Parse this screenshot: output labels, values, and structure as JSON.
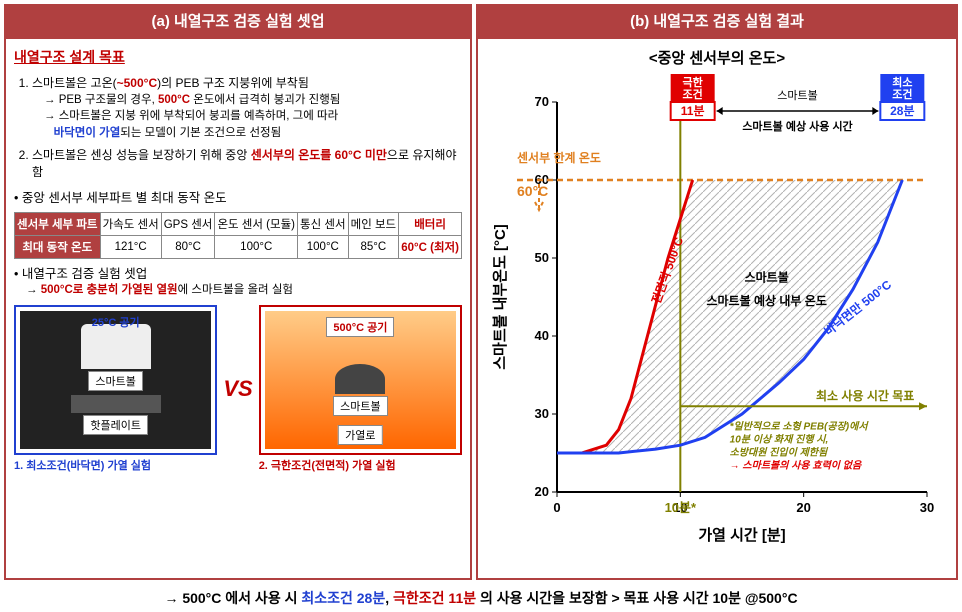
{
  "panel_a": {
    "header": "(a) 내열구조 검증 실험 셋업",
    "goal_title": "내열구조 설계 목표",
    "item1_pre": "스마트볼은 고온(",
    "item1_temp": "~500°C",
    "item1_post": ")의 PEB 구조 지붕위에 부착됨",
    "item1_sub1a": "→ PEB 구조물의 경우, ",
    "item1_sub1b": "500°C",
    "item1_sub1c": " 온도에서 급격히 붕괴가 진행됨",
    "item1_sub2a": "→ 스마트볼은 지붕 위에 부착되어 붕괴를 예측하며, 그에 따라",
    "item1_sub2b": "바닥면이 가열",
    "item1_sub2c": "되는 모델이 기본 조건으로 선정됨",
    "item2_a": "스마트볼은 센싱 성능을 보장하기 위해 중앙 ",
    "item2_b": "센서부의 온도를 60°C 미만",
    "item2_c": "으로 유지해야 함",
    "bullet1": "• 중앙 센서부 세부파트 별 최대 동작 온도",
    "table": {
      "r1": [
        "센서부 세부 파트",
        "가속도 센서",
        "GPS 센서",
        "온도 센서 (모듈)",
        "통신 센서",
        "메인 보드",
        "배터리"
      ],
      "r2": [
        "최대 동작 온도",
        "121°C",
        "80°C",
        "100°C",
        "100°C",
        "85°C",
        "60°C (최저)"
      ]
    },
    "bullet2": "• 내열구조 검증 실험 셋업",
    "bullet2_sub_a": "→ ",
    "bullet2_sub_b": "500°C로 충분히 가열된 열원",
    "bullet2_sub_c": "에 스마트볼을 올려 실험",
    "left_air": "25°C 공기",
    "right_air": "500°C 공기",
    "smartball": "스마트볼",
    "hotplate": "핫플레이트",
    "furnace": "가열로",
    "vs": "VS",
    "cap1": "1. 최소조건(바닥면) 가열 실험",
    "cap2": "2. 극한조건(전면적) 가열 실험"
  },
  "panel_b": {
    "header": "(b) 내열구조 검증 실험 결과",
    "chart_title": "<중앙 센서부의 온도>",
    "chart": {
      "xlabel": "가열 시간 [분]",
      "ylabel": "스마트볼 내부온도 [°C]",
      "xlim": [
        0,
        30
      ],
      "ylim": [
        20,
        70
      ],
      "xticks": [
        0,
        10,
        20,
        30
      ],
      "yticks": [
        20,
        30,
        40,
        50,
        60,
        70
      ],
      "limit_temp": 60,
      "limit_label": "센서부 한계 온도",
      "limit_temp_label": "60°C",
      "extreme_box_title": "극한 조건",
      "extreme_time": "11분",
      "min_box_title": "최소 조건",
      "min_time": "28분",
      "usage_label": "스마트볼 예상 사용 시간",
      "inner_label": "스마트볼 예상 내부 온도",
      "red_curve_label": "전면적 500°C",
      "blue_curve_label": "바닥면만 500°C",
      "target_label": "최소 사용 시간 목표",
      "note1": "*일반적으로 소형 PEB(공장)에서",
      "note2": "10분 이상 화재 진행 시,",
      "note3": "소방대원 진입이 제한됨",
      "note4": "→ 스마트볼의 사용 효력이 없음",
      "x10_label": "10분*",
      "red_curve": [
        [
          0,
          25
        ],
        [
          2,
          25
        ],
        [
          4,
          26
        ],
        [
          5,
          28
        ],
        [
          6,
          32
        ],
        [
          7,
          38
        ],
        [
          8,
          44
        ],
        [
          9,
          50
        ],
        [
          10,
          55
        ],
        [
          10.6,
          58
        ],
        [
          11,
          60
        ]
      ],
      "blue_curve": [
        [
          0,
          25
        ],
        [
          5,
          25
        ],
        [
          8,
          25.5
        ],
        [
          10,
          26
        ],
        [
          12,
          27
        ],
        [
          15,
          30
        ],
        [
          18,
          34
        ],
        [
          20,
          37
        ],
        [
          22,
          41
        ],
        [
          24,
          46
        ],
        [
          26,
          52
        ],
        [
          28,
          60
        ]
      ],
      "colors": {
        "red": "#e00000",
        "blue": "#2040f0",
        "orange": "#e08020",
        "olive": "#808000",
        "hatch": "#808080"
      }
    }
  },
  "footer": {
    "a": "→ 500°C 에서 사용 시 ",
    "b": "최소조건 28분",
    "c": ", ",
    "d": "극한조건 11분",
    "e": " 의 사용 시간을 보장함 > 목표 사용 시간 10분 @500°C"
  }
}
